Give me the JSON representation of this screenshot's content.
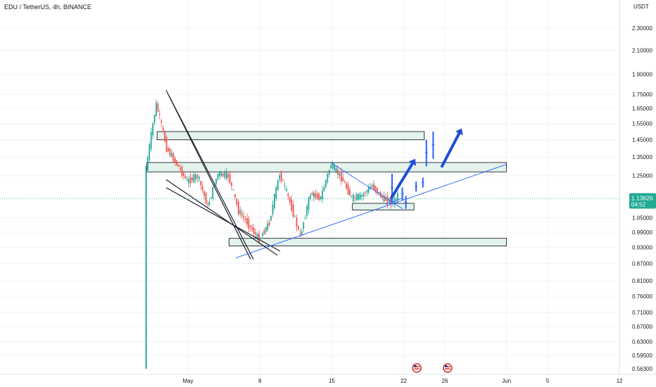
{
  "header": {
    "symbol_title": "EDU / TetherUS, 4h, BINANCE",
    "currency": "USDT"
  },
  "colors": {
    "up": "#26a69a",
    "down": "#ef5350",
    "zone_fill": "#e3f3ec",
    "zone_stroke": "#1e222d",
    "trendline": "#1e222d",
    "blue_line": "#2962ff",
    "arrow": "#1e4ed8",
    "price_badge": "#22ab94",
    "last_price_line": "#22ab94",
    "grid": "#f0f3fa",
    "axis_line": "#e0e3eb"
  },
  "chart_data": {
    "type": "candlestick",
    "x_axis": {
      "tick_labels": [
        "May",
        "8",
        "15",
        "22",
        "26",
        "Jun",
        "5",
        "12"
      ]
    },
    "y_axis": {
      "scale": "log",
      "ylim": [
        0.56,
        2.45
      ],
      "tick_labels": [
        "2.30000",
        "2.10000",
        "1.90000",
        "1.75000",
        "1.65000",
        "1.55000",
        "1.45000",
        "1.35000",
        "1.25000",
        "1.05000",
        "0.99000",
        "0.93000",
        "0.87000",
        "0.81000",
        "0.76000",
        "0.71000",
        "0.67000",
        "0.63000",
        "0.59500",
        "0.56300"
      ]
    },
    "last_price": {
      "value": 1.13626,
      "label": "1.13626",
      "countdown": "04:52"
    },
    "initial_spike": {
      "low": 0.563,
      "high": 1.3
    },
    "zones": [
      {
        "from_date": "Apr 29",
        "to_date": "May 24",
        "low": 1.45,
        "high": 1.5
      },
      {
        "from_date": "Apr 28",
        "to_date": "Jun 1",
        "low": 1.27,
        "high": 1.32
      },
      {
        "from_date": "May 17",
        "to_date": "May 23",
        "low": 1.085,
        "high": 1.115
      },
      {
        "from_date": "May 5",
        "to_date": "Jun 1",
        "low": 0.935,
        "high": 0.965
      }
    ],
    "price_path": [
      {
        "date": "Apr 28",
        "price": 1.28
      },
      {
        "date": "Apr 29",
        "price": 1.68
      },
      {
        "date": "Apr 30",
        "price": 1.4
      },
      {
        "date": "May 1",
        "price": 1.22
      },
      {
        "date": "May 2",
        "price": 1.25
      },
      {
        "date": "May 3",
        "price": 1.1
      },
      {
        "date": "May 4",
        "price": 1.26
      },
      {
        "date": "May 5",
        "price": 1.25
      },
      {
        "date": "May 6",
        "price": 1.08
      },
      {
        "date": "May 7",
        "price": 1.02
      },
      {
        "date": "May 8",
        "price": 0.96
      },
      {
        "date": "May 9",
        "price": 1.03
      },
      {
        "date": "May 10",
        "price": 1.26
      },
      {
        "date": "May 11",
        "price": 1.12
      },
      {
        "date": "May 12",
        "price": 0.97
      },
      {
        "date": "May 13",
        "price": 1.16
      },
      {
        "date": "May 14",
        "price": 1.14
      },
      {
        "date": "May 15",
        "price": 1.31
      },
      {
        "date": "May 16",
        "price": 1.24
      },
      {
        "date": "May 17",
        "price": 1.14
      },
      {
        "date": "May 18",
        "price": 1.15
      },
      {
        "date": "May 19",
        "price": 1.2
      },
      {
        "date": "May 20",
        "price": 1.14
      },
      {
        "date": "May 21",
        "price": 1.12
      },
      {
        "date": "May 21.5",
        "price": 1.15
      }
    ],
    "projection": [
      {
        "date": "May 22",
        "price": 1.14
      },
      {
        "date": "May 23",
        "price": 1.19
      },
      {
        "date": "May 24",
        "price": 1.23
      },
      {
        "date": "May 25",
        "price": 1.42
      }
    ],
    "calendar_flags": [
      "May 23",
      "May 26"
    ]
  }
}
